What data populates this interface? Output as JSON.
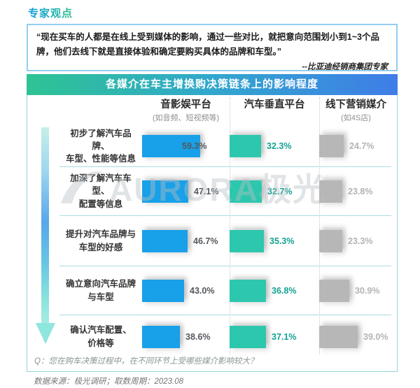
{
  "page": {
    "section_title": "专家观点",
    "quote": {
      "text": "“现在买车的人都是在线上受到媒体的影响，通过一些对比，就把意向范围划小到1~3个品牌，他们去线下就是直接体验和确定要购买具体的品牌和车型。”",
      "attribution": "--比亚迪经销商集团专家"
    }
  },
  "chart": {
    "title": "各媒介在车主增换购决策链条上的影响程度",
    "watermark": "AURORA极光",
    "question": "Q：您在购车决策过程中，在不同环节上受哪些媒介影响较大？",
    "source": "数据来源：极光调研；取数周期：2023.08",
    "columns": [
      {
        "label": "音影娱平台",
        "sublabel": "(如音频、短视频等)",
        "bar_color": "#18a0e8",
        "value_color": "#53585c"
      },
      {
        "label": "汽车垂直平台",
        "sublabel": "",
        "bar_color": "#2dc7ae",
        "value_color": "#15a193"
      },
      {
        "label": "线下营销媒介",
        "sublabel": "(如4S店)",
        "bar_color": "#b7b7b7",
        "value_color": "#b3b3b3"
      }
    ],
    "rows": [
      {
        "label": "初步了解汽车品牌、\n车型、性能等信息",
        "values": [
          "59.3%",
          "32.3%",
          "24.7%"
        ]
      },
      {
        "label": "加深了解汽车车型、\n配置等信息",
        "values": [
          "47.1%",
          "32.7%",
          "23.8%"
        ]
      },
      {
        "label": "提升对汽车品牌与\n车型的好感",
        "values": [
          "46.7%",
          "35.3%",
          "23.3%"
        ]
      },
      {
        "label": "确立意向汽车品牌\n与车型",
        "values": [
          "43.0%",
          "36.8%",
          "30.9%"
        ]
      },
      {
        "label": "确认汽车配置、\n价格等",
        "values": [
          "38.6%",
          "37.1%",
          "39.0%"
        ]
      }
    ]
  },
  "chart_data": {
    "type": "bar",
    "orientation": "horizontal",
    "title": "各媒介在车主增换购决策链条上的影响程度",
    "categories": [
      "初步了解汽车品牌、车型、性能等信息",
      "加深了解汽车车型、配置等信息",
      "提升对汽车品牌与车型的好感",
      "确立意向汽车品牌与车型",
      "确认汽车配置、价格等"
    ],
    "series": [
      {
        "name": "音影娱平台（如音频、短视频等）",
        "values": [
          59.3,
          47.1,
          46.7,
          43.0,
          38.6
        ],
        "color": "#18a0e8"
      },
      {
        "name": "汽车垂直平台",
        "values": [
          32.3,
          32.7,
          35.3,
          36.8,
          37.1
        ],
        "color": "#2dc7ae"
      },
      {
        "name": "线下营销媒介（如4S店）",
        "values": [
          24.7,
          23.8,
          23.3,
          30.9,
          39.0
        ],
        "color": "#b7b7b7"
      }
    ],
    "unit": "%",
    "xlim": [
      0,
      70
    ],
    "grid": false,
    "legend_position": "column-headers-top",
    "annotations": {
      "question": "Q：您在购车决策过程中，在不同环节上受哪些媒介影响较大？",
      "source": "数据来源：极光调研；取数周期：2023.08",
      "watermark": "AURORA极光"
    }
  }
}
